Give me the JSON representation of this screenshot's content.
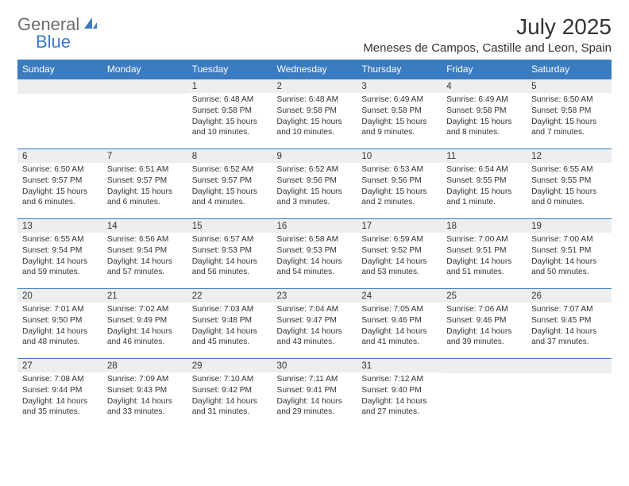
{
  "logo": {
    "text1": "General",
    "text2": "Blue"
  },
  "title": "July 2025",
  "location": "Meneses de Campos, Castille and Leon, Spain",
  "headers": [
    "Sunday",
    "Monday",
    "Tuesday",
    "Wednesday",
    "Thursday",
    "Friday",
    "Saturday"
  ],
  "header_bg": "#3b7bbf",
  "daynum_bg": "#eceef0",
  "weeks": [
    [
      {
        "n": "",
        "sr": "",
        "ss": "",
        "dl": ""
      },
      {
        "n": "",
        "sr": "",
        "ss": "",
        "dl": ""
      },
      {
        "n": "1",
        "sr": "Sunrise: 6:48 AM",
        "ss": "Sunset: 9:58 PM",
        "dl": "Daylight: 15 hours and 10 minutes."
      },
      {
        "n": "2",
        "sr": "Sunrise: 6:48 AM",
        "ss": "Sunset: 9:58 PM",
        "dl": "Daylight: 15 hours and 10 minutes."
      },
      {
        "n": "3",
        "sr": "Sunrise: 6:49 AM",
        "ss": "Sunset: 9:58 PM",
        "dl": "Daylight: 15 hours and 9 minutes."
      },
      {
        "n": "4",
        "sr": "Sunrise: 6:49 AM",
        "ss": "Sunset: 9:58 PM",
        "dl": "Daylight: 15 hours and 8 minutes."
      },
      {
        "n": "5",
        "sr": "Sunrise: 6:50 AM",
        "ss": "Sunset: 9:58 PM",
        "dl": "Daylight: 15 hours and 7 minutes."
      }
    ],
    [
      {
        "n": "6",
        "sr": "Sunrise: 6:50 AM",
        "ss": "Sunset: 9:57 PM",
        "dl": "Daylight: 15 hours and 6 minutes."
      },
      {
        "n": "7",
        "sr": "Sunrise: 6:51 AM",
        "ss": "Sunset: 9:57 PM",
        "dl": "Daylight: 15 hours and 6 minutes."
      },
      {
        "n": "8",
        "sr": "Sunrise: 6:52 AM",
        "ss": "Sunset: 9:57 PM",
        "dl": "Daylight: 15 hours and 4 minutes."
      },
      {
        "n": "9",
        "sr": "Sunrise: 6:52 AM",
        "ss": "Sunset: 9:56 PM",
        "dl": "Daylight: 15 hours and 3 minutes."
      },
      {
        "n": "10",
        "sr": "Sunrise: 6:53 AM",
        "ss": "Sunset: 9:56 PM",
        "dl": "Daylight: 15 hours and 2 minutes."
      },
      {
        "n": "11",
        "sr": "Sunrise: 6:54 AM",
        "ss": "Sunset: 9:55 PM",
        "dl": "Daylight: 15 hours and 1 minute."
      },
      {
        "n": "12",
        "sr": "Sunrise: 6:55 AM",
        "ss": "Sunset: 9:55 PM",
        "dl": "Daylight: 15 hours and 0 minutes."
      }
    ],
    [
      {
        "n": "13",
        "sr": "Sunrise: 6:55 AM",
        "ss": "Sunset: 9:54 PM",
        "dl": "Daylight: 14 hours and 59 minutes."
      },
      {
        "n": "14",
        "sr": "Sunrise: 6:56 AM",
        "ss": "Sunset: 9:54 PM",
        "dl": "Daylight: 14 hours and 57 minutes."
      },
      {
        "n": "15",
        "sr": "Sunrise: 6:57 AM",
        "ss": "Sunset: 9:53 PM",
        "dl": "Daylight: 14 hours and 56 minutes."
      },
      {
        "n": "16",
        "sr": "Sunrise: 6:58 AM",
        "ss": "Sunset: 9:53 PM",
        "dl": "Daylight: 14 hours and 54 minutes."
      },
      {
        "n": "17",
        "sr": "Sunrise: 6:59 AM",
        "ss": "Sunset: 9:52 PM",
        "dl": "Daylight: 14 hours and 53 minutes."
      },
      {
        "n": "18",
        "sr": "Sunrise: 7:00 AM",
        "ss": "Sunset: 9:51 PM",
        "dl": "Daylight: 14 hours and 51 minutes."
      },
      {
        "n": "19",
        "sr": "Sunrise: 7:00 AM",
        "ss": "Sunset: 9:51 PM",
        "dl": "Daylight: 14 hours and 50 minutes."
      }
    ],
    [
      {
        "n": "20",
        "sr": "Sunrise: 7:01 AM",
        "ss": "Sunset: 9:50 PM",
        "dl": "Daylight: 14 hours and 48 minutes."
      },
      {
        "n": "21",
        "sr": "Sunrise: 7:02 AM",
        "ss": "Sunset: 9:49 PM",
        "dl": "Daylight: 14 hours and 46 minutes."
      },
      {
        "n": "22",
        "sr": "Sunrise: 7:03 AM",
        "ss": "Sunset: 9:48 PM",
        "dl": "Daylight: 14 hours and 45 minutes."
      },
      {
        "n": "23",
        "sr": "Sunrise: 7:04 AM",
        "ss": "Sunset: 9:47 PM",
        "dl": "Daylight: 14 hours and 43 minutes."
      },
      {
        "n": "24",
        "sr": "Sunrise: 7:05 AM",
        "ss": "Sunset: 9:46 PM",
        "dl": "Daylight: 14 hours and 41 minutes."
      },
      {
        "n": "25",
        "sr": "Sunrise: 7:06 AM",
        "ss": "Sunset: 9:46 PM",
        "dl": "Daylight: 14 hours and 39 minutes."
      },
      {
        "n": "26",
        "sr": "Sunrise: 7:07 AM",
        "ss": "Sunset: 9:45 PM",
        "dl": "Daylight: 14 hours and 37 minutes."
      }
    ],
    [
      {
        "n": "27",
        "sr": "Sunrise: 7:08 AM",
        "ss": "Sunset: 9:44 PM",
        "dl": "Daylight: 14 hours and 35 minutes."
      },
      {
        "n": "28",
        "sr": "Sunrise: 7:09 AM",
        "ss": "Sunset: 9:43 PM",
        "dl": "Daylight: 14 hours and 33 minutes."
      },
      {
        "n": "29",
        "sr": "Sunrise: 7:10 AM",
        "ss": "Sunset: 9:42 PM",
        "dl": "Daylight: 14 hours and 31 minutes."
      },
      {
        "n": "30",
        "sr": "Sunrise: 7:11 AM",
        "ss": "Sunset: 9:41 PM",
        "dl": "Daylight: 14 hours and 29 minutes."
      },
      {
        "n": "31",
        "sr": "Sunrise: 7:12 AM",
        "ss": "Sunset: 9:40 PM",
        "dl": "Daylight: 14 hours and 27 minutes."
      },
      {
        "n": "",
        "sr": "",
        "ss": "",
        "dl": ""
      },
      {
        "n": "",
        "sr": "",
        "ss": "",
        "dl": ""
      }
    ]
  ]
}
